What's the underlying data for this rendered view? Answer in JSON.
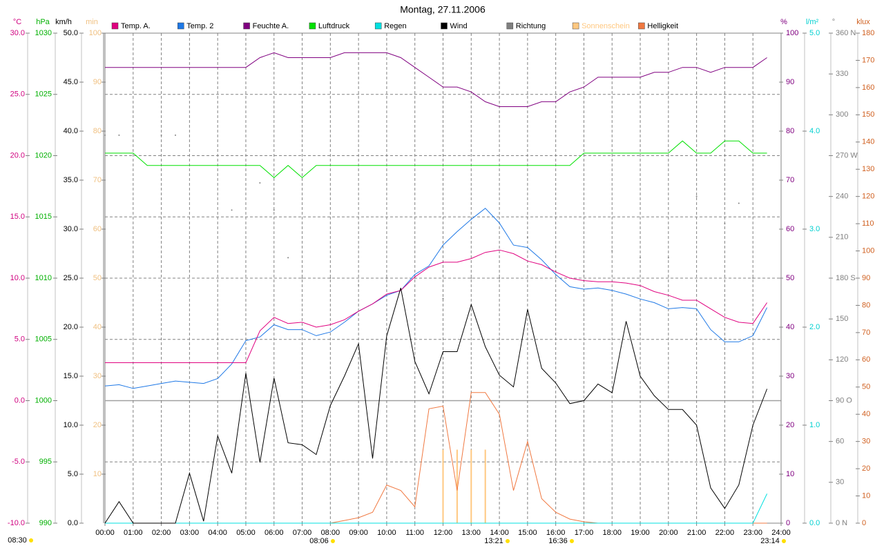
{
  "chart_data": {
    "type": "line",
    "title": "Montag, 27.11.2006",
    "x": [
      0,
      0.5,
      1,
      1.5,
      2,
      2.5,
      3,
      3.5,
      4,
      4.5,
      5,
      5.5,
      6,
      6.5,
      7,
      7.5,
      8,
      8.5,
      9,
      9.5,
      10,
      10.5,
      11,
      11.5,
      12,
      12.5,
      13,
      13.5,
      14,
      14.5,
      15,
      15.5,
      16,
      16.5,
      17,
      17.5,
      18,
      18.5,
      19,
      19.5,
      20,
      20.5,
      21,
      21.5,
      22,
      22.5,
      23,
      23.5
    ],
    "xlim": [
      0,
      24
    ],
    "xticks": [
      {
        "value": 0,
        "label": "00:00"
      },
      {
        "value": 1,
        "label": "01:00"
      },
      {
        "value": 2,
        "label": "02:00"
      },
      {
        "value": 3,
        "label": "03:00"
      },
      {
        "value": 4,
        "label": "04:00"
      },
      {
        "value": 5,
        "label": "05:00"
      },
      {
        "value": 6,
        "label": "06:00"
      },
      {
        "value": 7,
        "label": "07:00"
      },
      {
        "value": 8,
        "label": "08:00"
      },
      {
        "value": 9,
        "label": "09:00"
      },
      {
        "value": 10,
        "label": "10:00"
      },
      {
        "value": 11,
        "label": "11:00"
      },
      {
        "value": 12,
        "label": "12:00"
      },
      {
        "value": 13,
        "label": "13:00"
      },
      {
        "value": 14,
        "label": "14:00"
      },
      {
        "value": 15,
        "label": "15:00"
      },
      {
        "value": 16,
        "label": "16:00"
      },
      {
        "value": 17,
        "label": "17:00"
      },
      {
        "value": 18,
        "label": "18:00"
      },
      {
        "value": 19,
        "label": "19:00"
      },
      {
        "value": 20,
        "label": "20:00"
      },
      {
        "value": 21,
        "label": "21:00"
      },
      {
        "value": 22,
        "label": "22:00"
      },
      {
        "value": 23,
        "label": "23:00"
      },
      {
        "value": 24,
        "label": "24:00"
      }
    ],
    "grid": true,
    "axes": [
      {
        "name": "°C",
        "color": "#d0007f",
        "lim": [
          -10,
          30
        ],
        "grid": true,
        "ticks": [
          {
            "value": 30,
            "label": "30.0"
          },
          {
            "value": 25,
            "label": "25.0"
          },
          {
            "value": 20,
            "label": "20.0"
          },
          {
            "value": 15,
            "label": "15.0"
          },
          {
            "value": 10,
            "label": "10.0"
          },
          {
            "value": 5,
            "label": "5.0"
          },
          {
            "value": 0,
            "label": "0.0"
          },
          {
            "value": -5,
            "label": "-5.0"
          },
          {
            "value": -10,
            "label": "-10.0"
          }
        ]
      },
      {
        "name": "hPa",
        "color": "#00b000",
        "lim": [
          990,
          1030
        ],
        "ticks": [
          1030,
          1025,
          1020,
          1015,
          1010,
          1005,
          1000,
          995,
          990
        ]
      },
      {
        "name": "km/h",
        "color": "#000000",
        "lim": [
          0,
          50
        ],
        "ticks": [
          {
            "value": 50,
            "label": "50.0"
          },
          {
            "value": 45,
            "label": "45.0"
          },
          {
            "value": 40,
            "label": "40.0"
          },
          {
            "value": 35,
            "label": "35.0"
          },
          {
            "value": 30,
            "label": "30.0"
          },
          {
            "value": 25,
            "label": "25.0"
          },
          {
            "value": 20,
            "label": "20.0"
          },
          {
            "value": 15,
            "label": "15.0"
          },
          {
            "value": 10,
            "label": "10.0"
          },
          {
            "value": 5,
            "label": "5.0"
          },
          {
            "value": 0,
            "label": "0.0"
          }
        ]
      },
      {
        "name": "min",
        "color": "#f0c080",
        "lim": [
          0,
          100
        ],
        "ticks": [
          100,
          90,
          80,
          70,
          60,
          50,
          40,
          30,
          20,
          10
        ]
      },
      {
        "name": "%",
        "color": "#800080",
        "lim": [
          0,
          100
        ],
        "ticks": [
          100,
          90,
          80,
          70,
          60,
          50,
          40,
          30,
          20,
          10,
          0
        ]
      },
      {
        "name": "l/m²",
        "color": "#00d0d0",
        "lim": [
          0,
          5
        ],
        "ticks": [
          {
            "value": 5,
            "label": "5.0"
          },
          {
            "value": 4,
            "label": "4.0"
          },
          {
            "value": 3,
            "label": "3.0"
          },
          {
            "value": 2,
            "label": "2.0"
          },
          {
            "value": 1,
            "label": "1.0"
          },
          {
            "value": 0,
            "label": "0.0"
          }
        ]
      },
      {
        "name": "°",
        "color": "#808080",
        "lim": [
          0,
          360
        ],
        "ticks": [
          {
            "value": 360,
            "label": "360 N"
          },
          330,
          300,
          {
            "value": 270,
            "label": "270 W"
          },
          240,
          210,
          {
            "value": 180,
            "label": "180 S"
          },
          150,
          120,
          {
            "value": 90,
            "label": "90 O"
          },
          60,
          30,
          {
            "value": 0,
            "label": "0 N"
          }
        ]
      },
      {
        "name": "klux",
        "color": "#d06020",
        "lim": [
          0,
          180
        ],
        "ticks": [
          180,
          170,
          160,
          150,
          140,
          130,
          120,
          110,
          100,
          90,
          80,
          70,
          60,
          50,
          40,
          30,
          20,
          10,
          0
        ]
      }
    ],
    "series": [
      {
        "name": "Temp. A.",
        "color": "#e0007f",
        "axis": "°C",
        "type": "line",
        "values": [
          3.1,
          3.1,
          3.1,
          3.1,
          3.1,
          3.1,
          3.1,
          3.1,
          3.1,
          3.1,
          3.1,
          5.7,
          6.8,
          6.3,
          6.4,
          6.0,
          6.2,
          6.6,
          7.3,
          7.9,
          8.7,
          9.0,
          10.1,
          10.9,
          11.3,
          11.3,
          11.6,
          12.1,
          12.3,
          12.0,
          11.4,
          11.1,
          10.5,
          10.0,
          9.8,
          9.7,
          9.7,
          9.6,
          9.4,
          8.9,
          8.6,
          8.2,
          8.2,
          7.5,
          6.8,
          6.4,
          6.3,
          8.0
        ]
      },
      {
        "name": "Temp. 2",
        "color": "#1e78e6",
        "axis": "°C",
        "type": "line",
        "values": [
          1.2,
          1.3,
          1.0,
          1.2,
          1.4,
          1.6,
          1.5,
          1.4,
          1.8,
          3.0,
          4.9,
          5.2,
          6.2,
          5.8,
          5.8,
          5.3,
          5.6,
          6.4,
          7.3,
          7.9,
          8.6,
          9.0,
          10.3,
          11.0,
          12.7,
          13.8,
          14.8,
          15.7,
          14.5,
          12.7,
          12.5,
          11.5,
          10.3,
          9.3,
          9.1,
          9.2,
          9.0,
          8.7,
          8.3,
          8.0,
          7.5,
          7.6,
          7.5,
          5.8,
          4.8,
          4.8,
          5.3,
          7.6
        ]
      },
      {
        "name": "Feuchte A.",
        "color": "#800080",
        "axis": "%",
        "type": "line",
        "values": [
          93,
          93,
          93,
          93,
          93,
          93,
          93,
          93,
          93,
          93,
          93,
          95,
          96,
          95,
          95,
          95,
          95,
          96,
          96,
          96,
          96,
          95,
          93,
          91,
          89,
          89,
          88,
          86,
          85,
          85,
          85,
          86,
          86,
          88,
          89,
          91,
          91,
          91,
          91,
          92,
          92,
          93,
          93,
          92,
          93,
          93,
          93,
          95
        ]
      },
      {
        "name": "Luftdruck",
        "color": "#00e000",
        "axis": "hPa",
        "type": "line",
        "values": [
          1020.2,
          1020.2,
          1020.2,
          1019.2,
          1019.2,
          1019.2,
          1019.2,
          1019.2,
          1019.2,
          1019.2,
          1019.2,
          1019.2,
          1018.2,
          1019.2,
          1018.2,
          1019.2,
          1019.2,
          1019.2,
          1019.2,
          1019.2,
          1019.2,
          1019.2,
          1019.2,
          1019.2,
          1019.2,
          1019.2,
          1019.2,
          1019.2,
          1019.2,
          1019.2,
          1019.2,
          1019.2,
          1019.2,
          1019.2,
          1020.2,
          1020.2,
          1020.2,
          1020.2,
          1020.2,
          1020.2,
          1020.2,
          1021.2,
          1020.2,
          1020.2,
          1021.2,
          1021.2,
          1020.2,
          1020.2
        ]
      },
      {
        "name": "Regen",
        "color": "#00e0e0",
        "axis": "l/m²",
        "type": "line",
        "values": [
          0,
          0,
          0,
          0,
          0,
          0,
          0,
          0,
          0,
          0,
          0,
          0,
          0,
          0,
          0,
          0,
          0,
          0,
          0,
          0,
          0,
          0,
          0,
          0,
          0,
          0,
          0,
          0,
          0,
          0,
          0,
          0,
          0,
          0,
          0,
          0,
          0,
          0,
          0,
          0,
          0,
          0,
          0,
          0,
          0,
          0,
          0,
          0.3
        ]
      },
      {
        "name": "Wind",
        "color": "#000000",
        "axis": "km/h",
        "type": "line",
        "values": [
          0,
          2.2,
          0,
          0,
          0,
          0,
          5.1,
          0.2,
          8.9,
          5.1,
          15.3,
          6.2,
          14.8,
          8.2,
          8.0,
          7.0,
          12.0,
          15.0,
          18.3,
          6.6,
          19.1,
          24.0,
          16.5,
          13.2,
          17.5,
          17.5,
          22.3,
          18.0,
          15.1,
          13.9,
          21.8,
          15.8,
          14.3,
          12.2,
          12.5,
          14.2,
          13.3,
          20.6,
          15.0,
          13.0,
          11.6,
          11.6,
          10.0,
          3.6,
          1.5,
          3.9,
          10.0,
          13.7
        ]
      },
      {
        "name": "Richtung",
        "color": "#808080",
        "axis": "°",
        "type": "scatter",
        "values": [
          285,
          285,
          null,
          null,
          285,
          285,
          null,
          null,
          null,
          230,
          null,
          250,
          230,
          195,
          180,
          null,
          180,
          null,
          175,
          null,
          180,
          null,
          180,
          null,
          165,
          null,
          180,
          null,
          180,
          null,
          210,
          null,
          185,
          null,
          185,
          null,
          200,
          null,
          195,
          null,
          195,
          null,
          240,
          null,
          220,
          235,
          180,
          null
        ]
      },
      {
        "name": "Sonnenschein",
        "color": "#ffc880",
        "axis": "min",
        "type": "bar",
        "values": [
          0,
          0,
          0,
          0,
          0,
          0,
          0,
          0,
          0,
          0,
          0,
          0,
          0,
          0,
          0,
          0,
          0,
          0,
          0,
          0,
          0,
          0,
          0,
          0,
          15,
          15,
          15,
          15,
          0,
          0,
          0,
          0,
          0,
          0,
          0,
          0,
          0,
          0,
          0,
          0,
          0,
          0,
          0,
          0,
          0,
          0,
          0,
          0
        ]
      },
      {
        "name": "Helligkeit",
        "color": "#f07840",
        "axis": "klux",
        "type": "line",
        "values": [
          0,
          0,
          0,
          0,
          0,
          0,
          0,
          0,
          0,
          0,
          0,
          0,
          0,
          0,
          0,
          0,
          0,
          1,
          2,
          4,
          14,
          12,
          6,
          42,
          43,
          12,
          48,
          48,
          40,
          12,
          30,
          9,
          4,
          1.5,
          0.5,
          0,
          0,
          0,
          0,
          0,
          0,
          0,
          0,
          0,
          0,
          0,
          0,
          0
        ]
      }
    ],
    "annotations": [
      "08:30",
      "08:06",
      "13:21",
      "16:36",
      "23:14"
    ]
  }
}
